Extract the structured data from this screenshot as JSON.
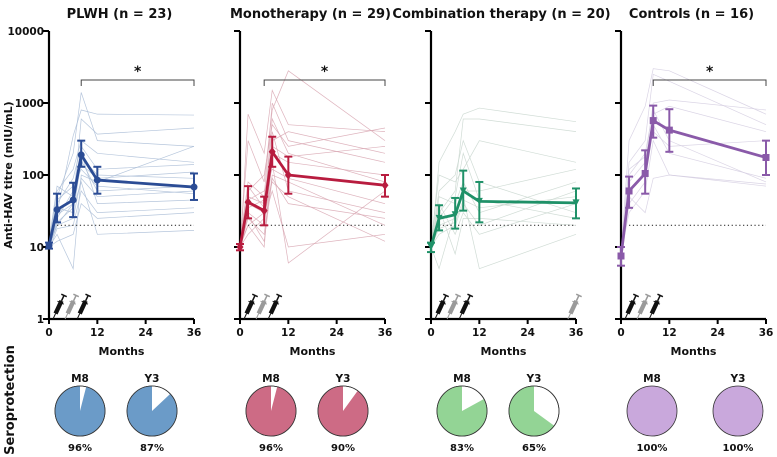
{
  "chart_data": {
    "type": "line",
    "y_axis_label": "Anti-HAV titre (mIU/mL)",
    "y_scale": "log",
    "ylim": [
      1,
      10000
    ],
    "y_ticks": [
      "1",
      "10",
      "100",
      "1000",
      "10000"
    ],
    "x_ticks": [
      "0",
      "12",
      "24",
      "36"
    ],
    "xlim": [
      0,
      36
    ],
    "xlabel": "Months",
    "threshold": 20,
    "timepoints": [
      0,
      2,
      6,
      8,
      12,
      36
    ],
    "seroprotection_label": "Seroprotection",
    "panels": [
      {
        "title": "PLWH (n = 23)",
        "color": "#2b4c95",
        "light_color": "#a9bcd6",
        "pie_color": "#6b9bc8",
        "marker": "circle",
        "mean": [
          10.5,
          33,
          45,
          190,
          85,
          68
        ],
        "err_low": [
          9.5,
          22,
          26,
          130,
          55,
          45
        ],
        "err_high": [
          11.5,
          55,
          78,
          300,
          130,
          105
        ],
        "significance": {
          "from": 8,
          "to": 36,
          "label": "*"
        },
        "doses": [
          {
            "month": 1,
            "shade": "black"
          },
          {
            "month": 4,
            "shade": "gray"
          },
          {
            "month": 7,
            "shade": "black"
          }
        ],
        "individuals": [
          [
            8,
            50,
            200,
            1400,
            300,
            250
          ],
          [
            9,
            30,
            350,
            800,
            700,
            680
          ],
          [
            10,
            20,
            40,
            600,
            370,
            450
          ],
          [
            11,
            60,
            120,
            300,
            200,
            150
          ],
          [
            12,
            40,
            90,
            250,
            120,
            140
          ],
          [
            9,
            25,
            60,
            180,
            100,
            90
          ],
          [
            10,
            15,
            5,
            100,
            80,
            250
          ],
          [
            11,
            35,
            30,
            160,
            60,
            70
          ],
          [
            10,
            20,
            25,
            90,
            50,
            60
          ],
          [
            12,
            70,
            50,
            200,
            40,
            45
          ],
          [
            9,
            18,
            20,
            60,
            30,
            35
          ],
          [
            10,
            12,
            15,
            40,
            25,
            30
          ],
          [
            11,
            45,
            70,
            120,
            70,
            55
          ],
          [
            10,
            22,
            35,
            80,
            15,
            17
          ],
          [
            9,
            28,
            40,
            140,
            90,
            110
          ]
        ],
        "pies": [
          {
            "label": "M8",
            "percent": 96,
            "text": "96%"
          },
          {
            "label": "Y3",
            "percent": 87,
            "text": "87%"
          }
        ]
      },
      {
        "title": "Monotherapy (n = 29)",
        "color": "#b81c3f",
        "light_color": "#d8a6b2",
        "pie_color": "#cd6b85",
        "marker": "diamond",
        "mean": [
          10,
          42,
          32,
          210,
          100,
          72
        ],
        "err_low": [
          9,
          25,
          20,
          130,
          55,
          50
        ],
        "err_high": [
          11,
          70,
          50,
          340,
          180,
          100
        ],
        "significance": {
          "from": 6,
          "to": 36,
          "label": "*"
        },
        "doses": [
          {
            "month": 1,
            "shade": "black"
          },
          {
            "month": 4,
            "shade": "gray"
          },
          {
            "month": 7,
            "shade": "black"
          }
        ],
        "individuals": [
          [
            8,
            700,
            200,
            1500,
            500,
            400
          ],
          [
            10,
            300,
            80,
            800,
            2800,
            300
          ],
          [
            9,
            60,
            100,
            500,
            250,
            450
          ],
          [
            11,
            40,
            30,
            300,
            400,
            200
          ],
          [
            10,
            20,
            10,
            200,
            150,
            100
          ],
          [
            12,
            80,
            50,
            1000,
            300,
            150
          ],
          [
            9,
            30,
            20,
            150,
            6,
            60
          ],
          [
            10,
            25,
            15,
            100,
            80,
            20
          ],
          [
            11,
            50,
            40,
            400,
            60,
            30
          ],
          [
            10,
            15,
            25,
            60,
            10,
            15
          ],
          [
            9,
            35,
            45,
            250,
            180,
            250
          ],
          [
            10,
            45,
            60,
            120,
            90,
            40
          ],
          [
            11,
            20,
            30,
            80,
            50,
            12
          ],
          [
            10,
            70,
            35,
            600,
            200,
            80
          ],
          [
            9,
            28,
            12,
            90,
            40,
            25
          ]
        ],
        "pies": [
          {
            "label": "M8",
            "percent": 96,
            "text": "96%"
          },
          {
            "label": "Y3",
            "percent": 90,
            "text": "90%"
          }
        ]
      },
      {
        "title": "Combination therapy (n = 20)",
        "color": "#1f9168",
        "light_color": "#c8d6ce",
        "pie_color": "#93d495",
        "marker": "triangle-down",
        "mean": [
          10,
          25,
          28,
          60,
          43,
          41
        ],
        "err_low": [
          8.5,
          17,
          18,
          32,
          22,
          25
        ],
        "err_high": [
          11.5,
          38,
          48,
          115,
          80,
          65
        ],
        "significance": null,
        "doses": [
          {
            "month": 1,
            "shade": "black"
          },
          {
            "month": 4,
            "shade": "gray"
          },
          {
            "month": 7,
            "shade": "black"
          },
          {
            "month": 34,
            "shade": "gray"
          }
        ],
        "individuals": [
          [
            9,
            150,
            400,
            700,
            850,
            550
          ],
          [
            10,
            30,
            60,
            600,
            600,
            400
          ],
          [
            11,
            100,
            80,
            120,
            300,
            150
          ],
          [
            10,
            20,
            25,
            60,
            60,
            120
          ],
          [
            9,
            50,
            40,
            80,
            30,
            80
          ],
          [
            10,
            15,
            20,
            40,
            20,
            60
          ],
          [
            11,
            40,
            15,
            30,
            15,
            40
          ],
          [
            10,
            5,
            30,
            50,
            5,
            15
          ],
          [
            9,
            25,
            50,
            200,
            45,
            25
          ],
          [
            10,
            35,
            8,
            25,
            25,
            20
          ],
          [
            11,
            60,
            100,
            300,
            80,
            30
          ],
          [
            10,
            18,
            22,
            45,
            35,
            50
          ]
        ],
        "pies": [
          {
            "label": "M8",
            "percent": 83,
            "text": "83%"
          },
          {
            "label": "Y3",
            "percent": 65,
            "text": "65%"
          }
        ]
      },
      {
        "title": "Controls (n = 16)",
        "color": "#8a5aa9",
        "light_color": "#d3cde0",
        "pie_color": "#c9a8dc",
        "marker": "square",
        "mean": [
          7.5,
          60,
          105,
          570,
          420,
          175
        ],
        "err_low": [
          5.5,
          35,
          55,
          330,
          210,
          100
        ],
        "err_high": [
          10,
          95,
          220,
          920,
          820,
          300
        ],
        "significance": {
          "from": 8,
          "to": 36,
          "label": "*"
        },
        "doses": [
          {
            "month": 1,
            "shade": "black"
          },
          {
            "month": 4,
            "shade": "gray"
          },
          {
            "month": 7,
            "shade": "black"
          }
        ],
        "individuals": [
          [
            8,
            300,
            900,
            3000,
            2800,
            700
          ],
          [
            7,
            150,
            300,
            2500,
            2000,
            500
          ],
          [
            9,
            80,
            150,
            1000,
            1100,
            800
          ],
          [
            6,
            40,
            80,
            700,
            900,
            400
          ],
          [
            7,
            60,
            100,
            500,
            200,
            90
          ],
          [
            8,
            30,
            60,
            300,
            100,
            70
          ],
          [
            6,
            100,
            200,
            800,
            300,
            80
          ],
          [
            7,
            50,
            30,
            90,
            100,
            75
          ],
          [
            8,
            120,
            180,
            400,
            250,
            300
          ]
        ],
        "pies": [
          {
            "label": "M8",
            "percent": 100,
            "text": "100%"
          },
          {
            "label": "Y3",
            "percent": 100,
            "text": "100%"
          }
        ]
      }
    ]
  }
}
